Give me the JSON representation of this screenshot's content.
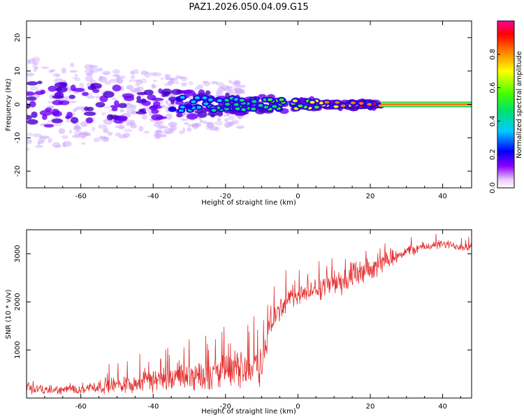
{
  "title": "PAZ1.2026.050.04.09.G15",
  "colors": {
    "snr_line": "#e33030",
    "axis": "#000000",
    "purple": "#5a00e6"
  },
  "chart_data": [
    {
      "type": "heatmap",
      "name": "spectrogram",
      "xlabel": "Height of straight line (km)",
      "ylabel": "Frequency (Hz)",
      "xlim": [
        -75,
        48
      ],
      "ylim": [
        -25,
        25
      ],
      "x_ticks": [
        -60,
        -40,
        -20,
        0,
        20,
        40
      ],
      "y_ticks": [
        -20,
        -10,
        0,
        10,
        20
      ],
      "x_tick_labels": [
        "-60",
        "-40",
        "-20",
        "0",
        "20",
        "40"
      ],
      "y_tick_labels": [
        "-20",
        "-10",
        "0",
        "10",
        "20"
      ],
      "steady_tone": {
        "x_start": 23,
        "x_end": 48,
        "frequency": 0,
        "amplitude": 0.9
      },
      "colorbar": {
        "label": "Normalized spectral amplitude",
        "range": [
          0,
          1
        ],
        "ticks": [
          0.0,
          0.2,
          0.4,
          0.6,
          0.8
        ],
        "tick_labels": [
          "0.0",
          "0.2",
          "0.4",
          "0.6",
          "0.8"
        ]
      }
    },
    {
      "type": "line",
      "name": "snr",
      "xlabel": "Height of straight line (km)",
      "ylabel": "SNR (10 * v/v)",
      "xlim": [
        -75,
        48
      ],
      "ylim": [
        0,
        3500
      ],
      "x_ticks": [
        -60,
        -40,
        -20,
        0,
        20,
        40
      ],
      "y_ticks": [
        1000,
        2000,
        3000
      ],
      "x_tick_labels": [
        "-60",
        "-40",
        "-20",
        "0",
        "20",
        "40"
      ],
      "y_tick_labels": [
        "1000",
        "2000",
        "3000"
      ],
      "trend": {
        "x": [
          -75,
          -70,
          -65,
          -60,
          -55,
          -50,
          -45,
          -40,
          -35,
          -30,
          -25,
          -20,
          -15,
          -10,
          -8,
          -5,
          0,
          5,
          10,
          15,
          20,
          25,
          30,
          35,
          40,
          45,
          48
        ],
        "y": [
          250,
          160,
          170,
          200,
          240,
          280,
          320,
          360,
          420,
          480,
          500,
          560,
          640,
          700,
          1400,
          1900,
          2150,
          2250,
          2400,
          2500,
          2650,
          2900,
          3050,
          3150,
          3200,
          3150,
          3150
        ],
        "noise": [
          200,
          120,
          110,
          130,
          180,
          220,
          250,
          300,
          320,
          360,
          400,
          420,
          460,
          500,
          420,
          320,
          260,
          260,
          320,
          380,
          280,
          200,
          150,
          120,
          110,
          110,
          110
        ]
      }
    }
  ]
}
